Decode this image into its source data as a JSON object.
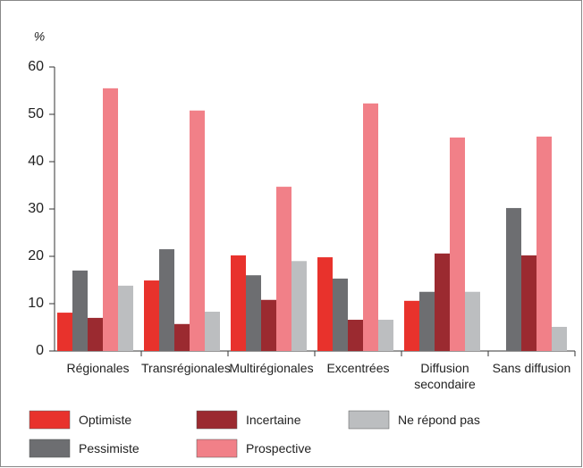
{
  "chart_data": {
    "type": "bar",
    "y_axis_label": "%",
    "categories": [
      "Régionales",
      "Transrégionales",
      "Multirégionales",
      "Excentrées",
      "Diffusion secondaire",
      "Sans diffusion"
    ],
    "series": [
      {
        "name": "Optimiste",
        "color": "#e8322c",
        "values": [
          8.1,
          14.9,
          20.2,
          19.8,
          10.6,
          0
        ]
      },
      {
        "name": "Pessimiste",
        "color": "#6d6e71",
        "values": [
          17,
          21.5,
          16,
          15.3,
          12.5,
          30.2
        ]
      },
      {
        "name": "Incertaine",
        "color": "#9b2a30",
        "values": [
          7,
          5.7,
          10.8,
          6.6,
          20.6,
          20.2
        ]
      },
      {
        "name": "Prospective",
        "color": "#f18088",
        "values": [
          55.5,
          50.8,
          34.7,
          52.3,
          45.1,
          45.3
        ]
      },
      {
        "name": "Ne répond pas",
        "color": "#bcbec0",
        "values": [
          13.8,
          8.3,
          19,
          6.6,
          12.5,
          5.1
        ]
      }
    ],
    "ylim": [
      0,
      60
    ],
    "yticks": [
      0,
      10,
      20,
      30,
      40,
      50,
      60
    ],
    "grid": false
  }
}
